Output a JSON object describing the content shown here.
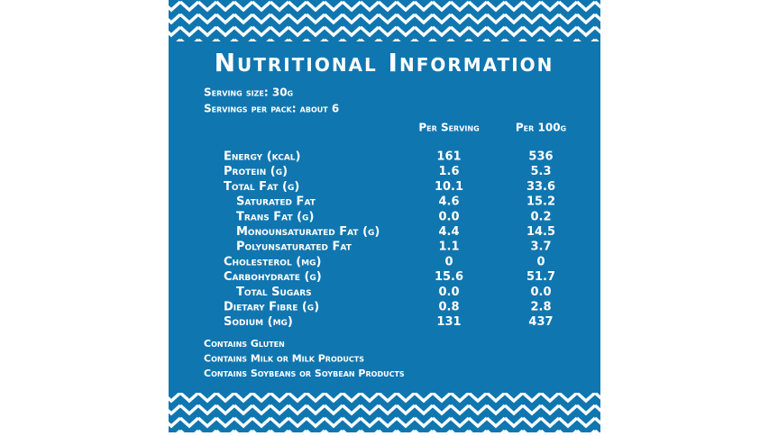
{
  "title": "Nutritional Information",
  "serving_size": "Serving size: 30g",
  "servings_per_pack": "Servings per pack: about 6",
  "table": {
    "headers": [
      "Per Serving",
      "Per 100g"
    ],
    "rows": [
      {
        "name": "Energy (kcal)",
        "per_serving": "161",
        "per_100g": "536"
      },
      {
        "name": "Protein (g)",
        "per_serving": "1.6",
        "per_100g": "5.3"
      },
      {
        "name": "Total Fat (g)",
        "per_serving": "10.1",
        "per_100g": "33.6",
        "subitems": [
          {
            "name": "Saturated Fat",
            "per_serving": "4.6",
            "per_100g": "15.2"
          },
          {
            "name": "Trans Fat (g)",
            "per_serving": "0.0",
            "per_100g": "0.2"
          },
          {
            "name": "Monounsaturated Fat (g)",
            "per_serving": "4.4",
            "per_100g": "14.5"
          },
          {
            "name": "Polyunsaturated Fat",
            "per_serving": "1.1",
            "per_100g": "3.7"
          }
        ]
      },
      {
        "name": "Cholesterol (mg)",
        "per_serving": "0",
        "per_100g": "0"
      },
      {
        "name": "Carbohydrate (g)",
        "per_serving": "15.6",
        "per_100g": "51.7",
        "subitems": [
          {
            "name": "Total Sugars",
            "per_serving": "0.0",
            "per_100g": "0.0"
          }
        ]
      },
      {
        "name": "Dietary Fibre (g)",
        "per_serving": "0.8",
        "per_100g": "2.8"
      },
      {
        "name": "Sodium (mg)",
        "per_serving": "131",
        "per_100g": "437"
      }
    ]
  },
  "allergens": [
    "Contains Gluten",
    "Contains Milk or Milk Products",
    "Contains Soybeans or Soybean Products"
  ]
}
